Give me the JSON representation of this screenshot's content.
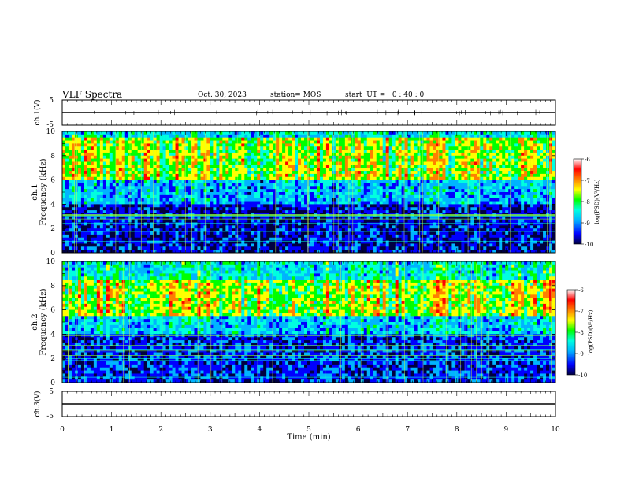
{
  "header": {
    "title": "VLF Spectra",
    "date": "Oct. 30, 2023",
    "station": "station= MOS",
    "start": "start  UT =   0 : 40 : 0"
  },
  "colors": {
    "scale": [
      "#000040",
      "#0000ff",
      "#00b4ff",
      "#00ffe0",
      "#00ff00",
      "#ffff00",
      "#ff8000",
      "#ff0000",
      "#ffffff"
    ]
  },
  "chart_data": [
    {
      "type": "line",
      "name": "ch1-waveform",
      "ylabel": "ch.1(V)",
      "ylim": [
        -5,
        5
      ],
      "yticks": [
        "5",
        "-5"
      ],
      "value_approx": 0
    },
    {
      "type": "heatmap",
      "name": "ch1-spectrogram",
      "ylabel": "ch.1\nFrequency (kHz)",
      "ylim": [
        0,
        10
      ],
      "yticks": [
        "0",
        "2",
        "4",
        "6",
        "8",
        "10"
      ],
      "xlim": [
        0,
        10
      ],
      "band_of_peak_intensity_khz": [
        6,
        9.5
      ],
      "colorbar": {
        "label": "log(PSD)(V²/Hz)",
        "range": [
          -10,
          -6
        ],
        "ticks": [
          "-6",
          "-7",
          "-8",
          "-9",
          "-10"
        ]
      }
    },
    {
      "type": "heatmap",
      "name": "ch2-spectrogram",
      "ylabel": "ch.2\nFrequency (kHz)",
      "ylim": [
        0,
        10
      ],
      "yticks": [
        "0",
        "2",
        "4",
        "6",
        "8",
        "10"
      ],
      "xlim": [
        0,
        10
      ],
      "band_of_peak_intensity_khz": [
        5.5,
        8.5
      ],
      "colorbar": {
        "label": "log(PSD)(V²/Hz)",
        "range": [
          -10,
          -6
        ],
        "ticks": [
          "-6",
          "-7",
          "-8",
          "-9",
          "-10"
        ]
      }
    },
    {
      "type": "line",
      "name": "ch3-waveform",
      "ylabel": "ch.3(V)",
      "ylim": [
        -5,
        5
      ],
      "yticks": [
        "5",
        "-5"
      ],
      "value_approx": 0
    }
  ],
  "xaxis": {
    "label": "Time (min)",
    "range": [
      0,
      10
    ],
    "ticks": [
      "0",
      "1",
      "2",
      "3",
      "4",
      "5",
      "6",
      "7",
      "8",
      "9",
      "10"
    ]
  }
}
